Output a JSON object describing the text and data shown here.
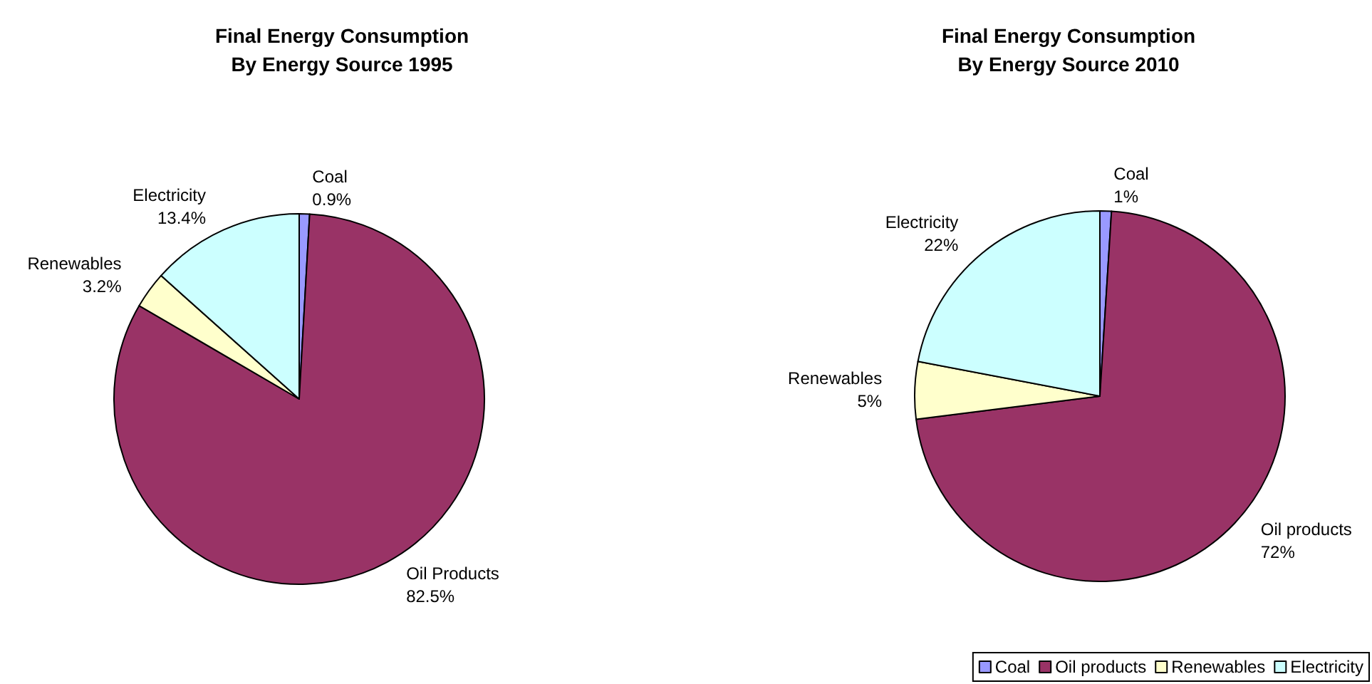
{
  "chart_data": [
    {
      "type": "pie",
      "title": "Final Energy Consumption\nBy Energy Source 1995",
      "categories": [
        "Coal",
        "Oil Products",
        "Renewables",
        "Electricity"
      ],
      "values": [
        0.9,
        82.5,
        3.2,
        13.4
      ],
      "value_labels": [
        "0.9%",
        "82.5%",
        "3.2%",
        "13.4%"
      ],
      "colors": [
        "#9999ff",
        "#993366",
        "#ffffcc",
        "#ccffff"
      ],
      "legend": false
    },
    {
      "type": "pie",
      "title": "Final Energy Consumption\nBy Energy Source 2010",
      "categories": [
        "Coal",
        "Oil products",
        "Renewables",
        "Electricity"
      ],
      "values": [
        1,
        72,
        5,
        22
      ],
      "value_labels": [
        "1%",
        "72%",
        "5%",
        "22%"
      ],
      "colors": [
        "#9999ff",
        "#993366",
        "#ffffcc",
        "#ccffff"
      ],
      "legend": "bottom"
    }
  ]
}
